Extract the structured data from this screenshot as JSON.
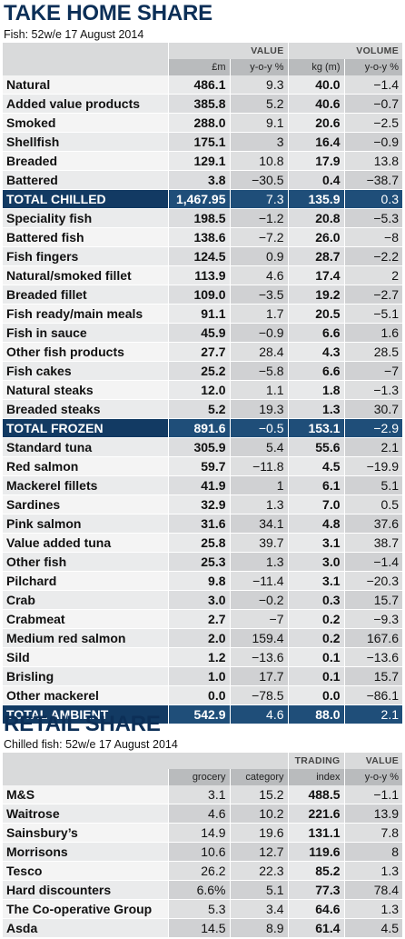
{
  "take_home": {
    "title": "TAKE HOME SHARE",
    "subtitle": "Fish: 52w/e 17 August 2014",
    "group_value": "VALUE",
    "group_volume": "VOLUME",
    "col_value": "£m",
    "col_value_yoy": "y-o-y %",
    "col_volume": "kg (m)",
    "col_volume_yoy": "y-o-y %",
    "rows": [
      {
        "name": "Natural",
        "value": "486.1",
        "value_yoy": "9.3",
        "volume": "40.0",
        "volume_yoy": "−1.4"
      },
      {
        "name": "Added value products",
        "value": "385.8",
        "value_yoy": "5.2",
        "volume": "40.6",
        "volume_yoy": "−0.7"
      },
      {
        "name": "Smoked",
        "value": "288.0",
        "value_yoy": "9.1",
        "volume": "20.6",
        "volume_yoy": "−2.5"
      },
      {
        "name": "Shellfish",
        "value": "175.1",
        "value_yoy": "3",
        "volume": "16.4",
        "volume_yoy": "−0.9"
      },
      {
        "name": "Breaded",
        "value": "129.1",
        "value_yoy": "10.8",
        "volume": "17.9",
        "volume_yoy": "13.8"
      },
      {
        "name": "Battered",
        "value": "3.8",
        "value_yoy": "−30.5",
        "volume": "0.4",
        "volume_yoy": "−38.7"
      },
      {
        "name": "TOTAL CHILLED",
        "value": "1,467.95",
        "value_yoy": "7.3",
        "volume": "135.9",
        "volume_yoy": "0.3"
      },
      {
        "name": "Speciality fish",
        "value": "198.5",
        "value_yoy": "−1.2",
        "volume": "20.8",
        "volume_yoy": "−5.3"
      },
      {
        "name": "Battered fish",
        "value": "138.6",
        "value_yoy": "−7.2",
        "volume": "26.0",
        "volume_yoy": "−8"
      },
      {
        "name": "Fish fingers",
        "value": "124.5",
        "value_yoy": "0.9",
        "volume": "28.7",
        "volume_yoy": "−2.2"
      },
      {
        "name": "Natural/smoked fillet",
        "value": "113.9",
        "value_yoy": "4.6",
        "volume": "17.4",
        "volume_yoy": "2"
      },
      {
        "name": "Breaded fillet",
        "value": "109.0",
        "value_yoy": "−3.5",
        "volume": "19.2",
        "volume_yoy": "−2.7"
      },
      {
        "name": "Fish ready/main meals",
        "value": "91.1",
        "value_yoy": "1.7",
        "volume": "20.5",
        "volume_yoy": "−5.1"
      },
      {
        "name": "Fish in sauce",
        "value": "45.9",
        "value_yoy": "−0.9",
        "volume": "6.6",
        "volume_yoy": "1.6"
      },
      {
        "name": "Other fish products",
        "value": "27.7",
        "value_yoy": "28.4",
        "volume": "4.3",
        "volume_yoy": "28.5"
      },
      {
        "name": "Fish cakes",
        "value": "25.2",
        "value_yoy": "−5.8",
        "volume": "6.6",
        "volume_yoy": "−7"
      },
      {
        "name": "Natural steaks",
        "value": "12.0",
        "value_yoy": "1.1",
        "volume": "1.8",
        "volume_yoy": "−1.3"
      },
      {
        "name": "Breaded steaks",
        "value": "5.2",
        "value_yoy": "19.3",
        "volume": "1.3",
        "volume_yoy": "30.7"
      },
      {
        "name": "TOTAL FROZEN",
        "value": "891.6",
        "value_yoy": "−0.5",
        "volume": "153.1",
        "volume_yoy": "−2.9"
      },
      {
        "name": "Standard tuna",
        "value": "305.9",
        "value_yoy": "5.4",
        "volume": "55.6",
        "volume_yoy": "2.1"
      },
      {
        "name": "Red salmon",
        "value": "59.7",
        "value_yoy": "−11.8",
        "volume": "4.5",
        "volume_yoy": "−19.9"
      },
      {
        "name": "Mackerel fillets",
        "value": "41.9",
        "value_yoy": "1",
        "volume": "6.1",
        "volume_yoy": "5.1"
      },
      {
        "name": "Sardines",
        "value": "32.9",
        "value_yoy": "1.3",
        "volume": "7.0",
        "volume_yoy": "0.5"
      },
      {
        "name": "Pink salmon",
        "value": "31.6",
        "value_yoy": "34.1",
        "volume": "4.8",
        "volume_yoy": "37.6"
      },
      {
        "name": "Value added tuna",
        "value": "25.8",
        "value_yoy": "39.7",
        "volume": "3.1",
        "volume_yoy": "38.7"
      },
      {
        "name": "Other fish",
        "value": "25.3",
        "value_yoy": "1.3",
        "volume": "3.0",
        "volume_yoy": "−1.4"
      },
      {
        "name": "Pilchard",
        "value": "9.8",
        "value_yoy": "−11.4",
        "volume": "3.1",
        "volume_yoy": "−20.3"
      },
      {
        "name": "Crab",
        "value": "3.0",
        "value_yoy": "−0.2",
        "volume": "0.3",
        "volume_yoy": "15.7"
      },
      {
        "name": "Crabmeat",
        "value": "2.7",
        "value_yoy": "−7",
        "volume": "0.2",
        "volume_yoy": "−9.3"
      },
      {
        "name": "Medium red salmon",
        "value": "2.0",
        "value_yoy": "159.4",
        "volume": "0.2",
        "volume_yoy": "167.6"
      },
      {
        "name": "Sild",
        "value": "1.2",
        "value_yoy": "−13.6",
        "volume": "0.1",
        "volume_yoy": "−13.6"
      },
      {
        "name": "Brisling",
        "value": "1.0",
        "value_yoy": "17.7",
        "volume": "0.1",
        "volume_yoy": "15.7"
      },
      {
        "name": "Other mackerel",
        "value": "0.0",
        "value_yoy": "−78.5",
        "volume": "0.0",
        "volume_yoy": "−86.1"
      },
      {
        "name": "TOTAL AMBIENT",
        "value": "542.9",
        "value_yoy": "4.6",
        "volume": "88.0",
        "volume_yoy": "2.1"
      }
    ]
  },
  "retail_share": {
    "title": "RETAIL SHARE",
    "subtitle": "Chilled fish: 52w/e 17 August 2014",
    "group_trading": "TRADING",
    "group_value": "VALUE",
    "col_grocery": "grocery",
    "col_category": "category",
    "col_index": "index",
    "col_yoy": "y-o-y %",
    "rows": [
      {
        "name": "M&S",
        "grocery": "3.1",
        "category": "15.2",
        "index": "488.5",
        "yoy": "−1.1"
      },
      {
        "name": "Waitrose",
        "grocery": "4.6",
        "category": "10.2",
        "index": "221.6",
        "yoy": "13.9"
      },
      {
        "name": "Sainsbury’s",
        "grocery": "14.9",
        "category": "19.6",
        "index": "131.1",
        "yoy": "7.8"
      },
      {
        "name": "Morrisons",
        "grocery": "10.6",
        "category": "12.7",
        "index": "119.6",
        "yoy": "8"
      },
      {
        "name": "Tesco",
        "grocery": "26.2",
        "category": "22.3",
        "index": "85.2",
        "yoy": "1.3"
      },
      {
        "name": "Hard discounters",
        "grocery": "6.6%",
        "category": "5.1",
        "index": "77.3",
        "yoy": "78.4"
      },
      {
        "name": "The Co-operative Group",
        "grocery": "5.3",
        "category": "3.4",
        "index": "64.6",
        "yoy": "1.3"
      },
      {
        "name": "Asda",
        "grocery": "14.5",
        "category": "8.9",
        "index": "61.4",
        "yoy": "4.5"
      }
    ]
  }
}
